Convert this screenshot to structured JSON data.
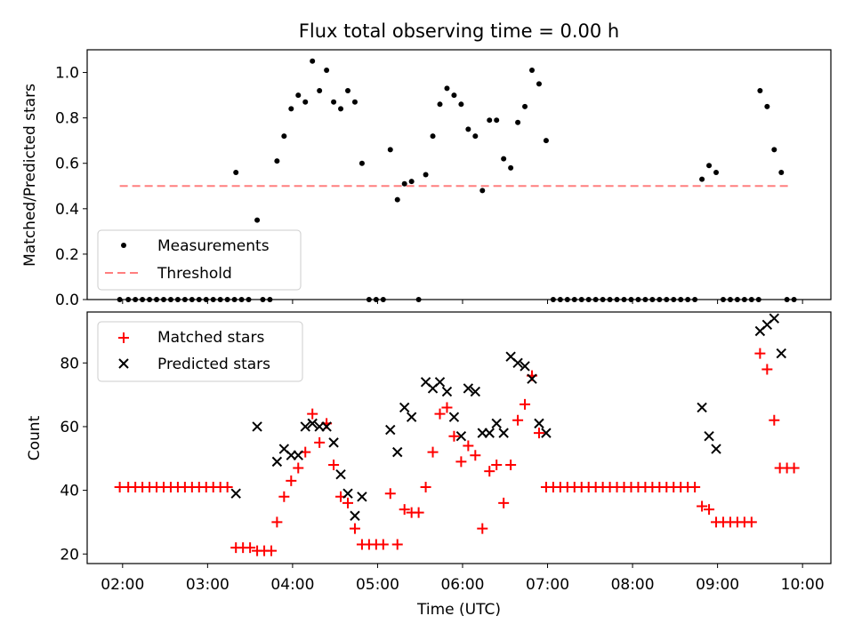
{
  "chart_data": {
    "type": "scatter",
    "title": "Flux total observing time = 0.00 h",
    "xlabel": "Time (UTC)",
    "x_ticks": [
      "02:00",
      "03:00",
      "04:00",
      "05:00",
      "06:00",
      "07:00",
      "08:00",
      "09:00",
      "10:00"
    ],
    "colors": {
      "measurements": "#000000",
      "threshold": "#ff7f7f",
      "matched": "#ff0000",
      "predicted": "#000000"
    },
    "top": {
      "ylabel": "Matched/Predicted stars",
      "ylim": [
        0,
        1.1
      ],
      "yticks": [
        "0.0",
        "0.2",
        "0.4",
        "0.6",
        "0.8",
        "1.0"
      ],
      "legend_position": "lower-left",
      "threshold": {
        "name": "Threshold",
        "value": 0.5,
        "x": [
          "01:58",
          "09:52"
        ]
      },
      "measurements": {
        "name": "Measurements",
        "points": [
          [
            "01:58",
            0
          ],
          [
            "02:04",
            0
          ],
          [
            "02:09",
            0
          ],
          [
            "02:14",
            0
          ],
          [
            "02:19",
            0
          ],
          [
            "02:24",
            0
          ],
          [
            "02:29",
            0
          ],
          [
            "02:34",
            0
          ],
          [
            "02:39",
            0
          ],
          [
            "02:44",
            0
          ],
          [
            "02:49",
            0
          ],
          [
            "02:54",
            0
          ],
          [
            "02:59",
            0
          ],
          [
            "03:04",
            0
          ],
          [
            "03:09",
            0
          ],
          [
            "03:14",
            0
          ],
          [
            "03:19",
            0
          ],
          [
            "03:20",
            0.56
          ],
          [
            "03:24",
            0
          ],
          [
            "03:29",
            0
          ],
          [
            "03:35",
            0.35
          ],
          [
            "03:39",
            0
          ],
          [
            "03:44",
            0
          ],
          [
            "03:49",
            0.61
          ],
          [
            "03:54",
            0.72
          ],
          [
            "03:59",
            0.84
          ],
          [
            "04:04",
            0.9
          ],
          [
            "04:09",
            0.87
          ],
          [
            "04:14",
            1.05
          ],
          [
            "04:19",
            0.92
          ],
          [
            "04:24",
            1.01
          ],
          [
            "04:29",
            0.87
          ],
          [
            "04:34",
            0.84
          ],
          [
            "04:39",
            0.92
          ],
          [
            "04:44",
            0.87
          ],
          [
            "04:49",
            0.6
          ],
          [
            "04:54",
            0
          ],
          [
            "04:59",
            0
          ],
          [
            "05:04",
            0
          ],
          [
            "05:09",
            0.66
          ],
          [
            "05:14",
            0.44
          ],
          [
            "05:19",
            0.51
          ],
          [
            "05:24",
            0.52
          ],
          [
            "05:29",
            0
          ],
          [
            "05:34",
            0.55
          ],
          [
            "05:39",
            0.72
          ],
          [
            "05:44",
            0.86
          ],
          [
            "05:49",
            0.93
          ],
          [
            "05:54",
            0.9
          ],
          [
            "05:59",
            0.86
          ],
          [
            "06:04",
            0.75
          ],
          [
            "06:09",
            0.72
          ],
          [
            "06:14",
            0.48
          ],
          [
            "06:19",
            0.79
          ],
          [
            "06:24",
            0.79
          ],
          [
            "06:29",
            0.62
          ],
          [
            "06:34",
            0.58
          ],
          [
            "06:39",
            0.78
          ],
          [
            "06:44",
            0.85
          ],
          [
            "06:49",
            1.01
          ],
          [
            "06:54",
            0.95
          ],
          [
            "06:59",
            0.7
          ],
          [
            "07:04",
            0
          ],
          [
            "07:09",
            0
          ],
          [
            "07:14",
            0
          ],
          [
            "07:19",
            0
          ],
          [
            "07:24",
            0
          ],
          [
            "07:29",
            0
          ],
          [
            "07:34",
            0
          ],
          [
            "07:39",
            0
          ],
          [
            "07:44",
            0
          ],
          [
            "07:49",
            0
          ],
          [
            "07:54",
            0
          ],
          [
            "07:59",
            0
          ],
          [
            "08:04",
            0
          ],
          [
            "08:09",
            0
          ],
          [
            "08:14",
            0
          ],
          [
            "08:19",
            0
          ],
          [
            "08:24",
            0
          ],
          [
            "08:29",
            0
          ],
          [
            "08:34",
            0
          ],
          [
            "08:39",
            0
          ],
          [
            "08:44",
            0
          ],
          [
            "08:49",
            0.53
          ],
          [
            "08:54",
            0.59
          ],
          [
            "08:59",
            0.56
          ],
          [
            "09:04",
            0
          ],
          [
            "09:09",
            0
          ],
          [
            "09:14",
            0
          ],
          [
            "09:19",
            0
          ],
          [
            "09:24",
            0
          ],
          [
            "09:29",
            0
          ],
          [
            "09:30",
            0.92
          ],
          [
            "09:35",
            0.85
          ],
          [
            "09:40",
            0.66
          ],
          [
            "09:45",
            0.56
          ],
          [
            "09:49",
            0
          ],
          [
            "09:54",
            0
          ]
        ]
      }
    },
    "bottom": {
      "ylabel": "Count",
      "ylim": [
        17,
        96
      ],
      "yticks": [
        "20",
        "40",
        "60",
        "80"
      ],
      "legend_position": "upper-left",
      "matched": {
        "name": "Matched stars",
        "points": [
          [
            "01:58",
            41
          ],
          [
            "02:04",
            41
          ],
          [
            "02:09",
            41
          ],
          [
            "02:14",
            41
          ],
          [
            "02:19",
            41
          ],
          [
            "02:24",
            41
          ],
          [
            "02:29",
            41
          ],
          [
            "02:34",
            41
          ],
          [
            "02:39",
            41
          ],
          [
            "02:44",
            41
          ],
          [
            "02:49",
            41
          ],
          [
            "02:54",
            41
          ],
          [
            "02:59",
            41
          ],
          [
            "03:04",
            41
          ],
          [
            "03:09",
            41
          ],
          [
            "03:14",
            41
          ],
          [
            "03:20",
            22
          ],
          [
            "03:25",
            22
          ],
          [
            "03:30",
            22
          ],
          [
            "03:35",
            21
          ],
          [
            "03:40",
            21
          ],
          [
            "03:45",
            21
          ],
          [
            "03:49",
            30
          ],
          [
            "03:54",
            38
          ],
          [
            "03:59",
            43
          ],
          [
            "04:04",
            47
          ],
          [
            "04:09",
            52
          ],
          [
            "04:14",
            64
          ],
          [
            "04:19",
            55
          ],
          [
            "04:24",
            61
          ],
          [
            "04:29",
            48
          ],
          [
            "04:34",
            38
          ],
          [
            "04:39",
            36
          ],
          [
            "04:44",
            28
          ],
          [
            "04:49",
            23
          ],
          [
            "04:54",
            23
          ],
          [
            "04:59",
            23
          ],
          [
            "05:04",
            23
          ],
          [
            "05:09",
            39
          ],
          [
            "05:14",
            23
          ],
          [
            "05:19",
            34
          ],
          [
            "05:24",
            33
          ],
          [
            "05:29",
            33
          ],
          [
            "05:34",
            41
          ],
          [
            "05:39",
            52
          ],
          [
            "05:44",
            64
          ],
          [
            "05:49",
            66
          ],
          [
            "05:54",
            57
          ],
          [
            "05:59",
            49
          ],
          [
            "06:04",
            54
          ],
          [
            "06:09",
            51
          ],
          [
            "06:14",
            28
          ],
          [
            "06:19",
            46
          ],
          [
            "06:24",
            48
          ],
          [
            "06:29",
            36
          ],
          [
            "06:34",
            48
          ],
          [
            "06:39",
            62
          ],
          [
            "06:44",
            67
          ],
          [
            "06:49",
            76
          ],
          [
            "06:54",
            58
          ],
          [
            "06:59",
            41
          ],
          [
            "07:04",
            41
          ],
          [
            "07:09",
            41
          ],
          [
            "07:14",
            41
          ],
          [
            "07:19",
            41
          ],
          [
            "07:24",
            41
          ],
          [
            "07:29",
            41
          ],
          [
            "07:34",
            41
          ],
          [
            "07:39",
            41
          ],
          [
            "07:44",
            41
          ],
          [
            "07:49",
            41
          ],
          [
            "07:54",
            41
          ],
          [
            "07:59",
            41
          ],
          [
            "08:04",
            41
          ],
          [
            "08:09",
            41
          ],
          [
            "08:14",
            41
          ],
          [
            "08:19",
            41
          ],
          [
            "08:24",
            41
          ],
          [
            "08:29",
            41
          ],
          [
            "08:34",
            41
          ],
          [
            "08:39",
            41
          ],
          [
            "08:44",
            41
          ],
          [
            "08:49",
            35
          ],
          [
            "08:54",
            34
          ],
          [
            "08:59",
            30
          ],
          [
            "09:04",
            30
          ],
          [
            "09:09",
            30
          ],
          [
            "09:14",
            30
          ],
          [
            "09:19",
            30
          ],
          [
            "09:24",
            30
          ],
          [
            "09:30",
            83
          ],
          [
            "09:35",
            78
          ],
          [
            "09:40",
            62
          ],
          [
            "09:44",
            47
          ],
          [
            "09:49",
            47
          ],
          [
            "09:54",
            47
          ]
        ]
      },
      "predicted": {
        "name": "Predicted stars",
        "points": [
          [
            "03:20",
            39
          ],
          [
            "03:35",
            60
          ],
          [
            "03:49",
            49
          ],
          [
            "03:54",
            53
          ],
          [
            "03:59",
            51
          ],
          [
            "04:04",
            51
          ],
          [
            "04:09",
            60
          ],
          [
            "04:14",
            61
          ],
          [
            "04:19",
            60
          ],
          [
            "04:24",
            60
          ],
          [
            "04:29",
            55
          ],
          [
            "04:34",
            45
          ],
          [
            "04:39",
            39
          ],
          [
            "04:44",
            32
          ],
          [
            "04:49",
            38
          ],
          [
            "05:09",
            59
          ],
          [
            "05:14",
            52
          ],
          [
            "05:19",
            66
          ],
          [
            "05:24",
            63
          ],
          [
            "05:34",
            74
          ],
          [
            "05:39",
            72
          ],
          [
            "05:44",
            74
          ],
          [
            "05:49",
            71
          ],
          [
            "05:54",
            63
          ],
          [
            "05:59",
            57
          ],
          [
            "06:04",
            72
          ],
          [
            "06:09",
            71
          ],
          [
            "06:14",
            58
          ],
          [
            "06:19",
            58
          ],
          [
            "06:24",
            61
          ],
          [
            "06:29",
            58
          ],
          [
            "06:34",
            82
          ],
          [
            "06:39",
            80
          ],
          [
            "06:44",
            79
          ],
          [
            "06:49",
            75
          ],
          [
            "06:54",
            61
          ],
          [
            "06:59",
            58
          ],
          [
            "08:49",
            66
          ],
          [
            "08:54",
            57
          ],
          [
            "08:59",
            53
          ],
          [
            "09:30",
            90
          ],
          [
            "09:35",
            92
          ],
          [
            "09:40",
            94
          ],
          [
            "09:45",
            83
          ]
        ]
      }
    }
  }
}
